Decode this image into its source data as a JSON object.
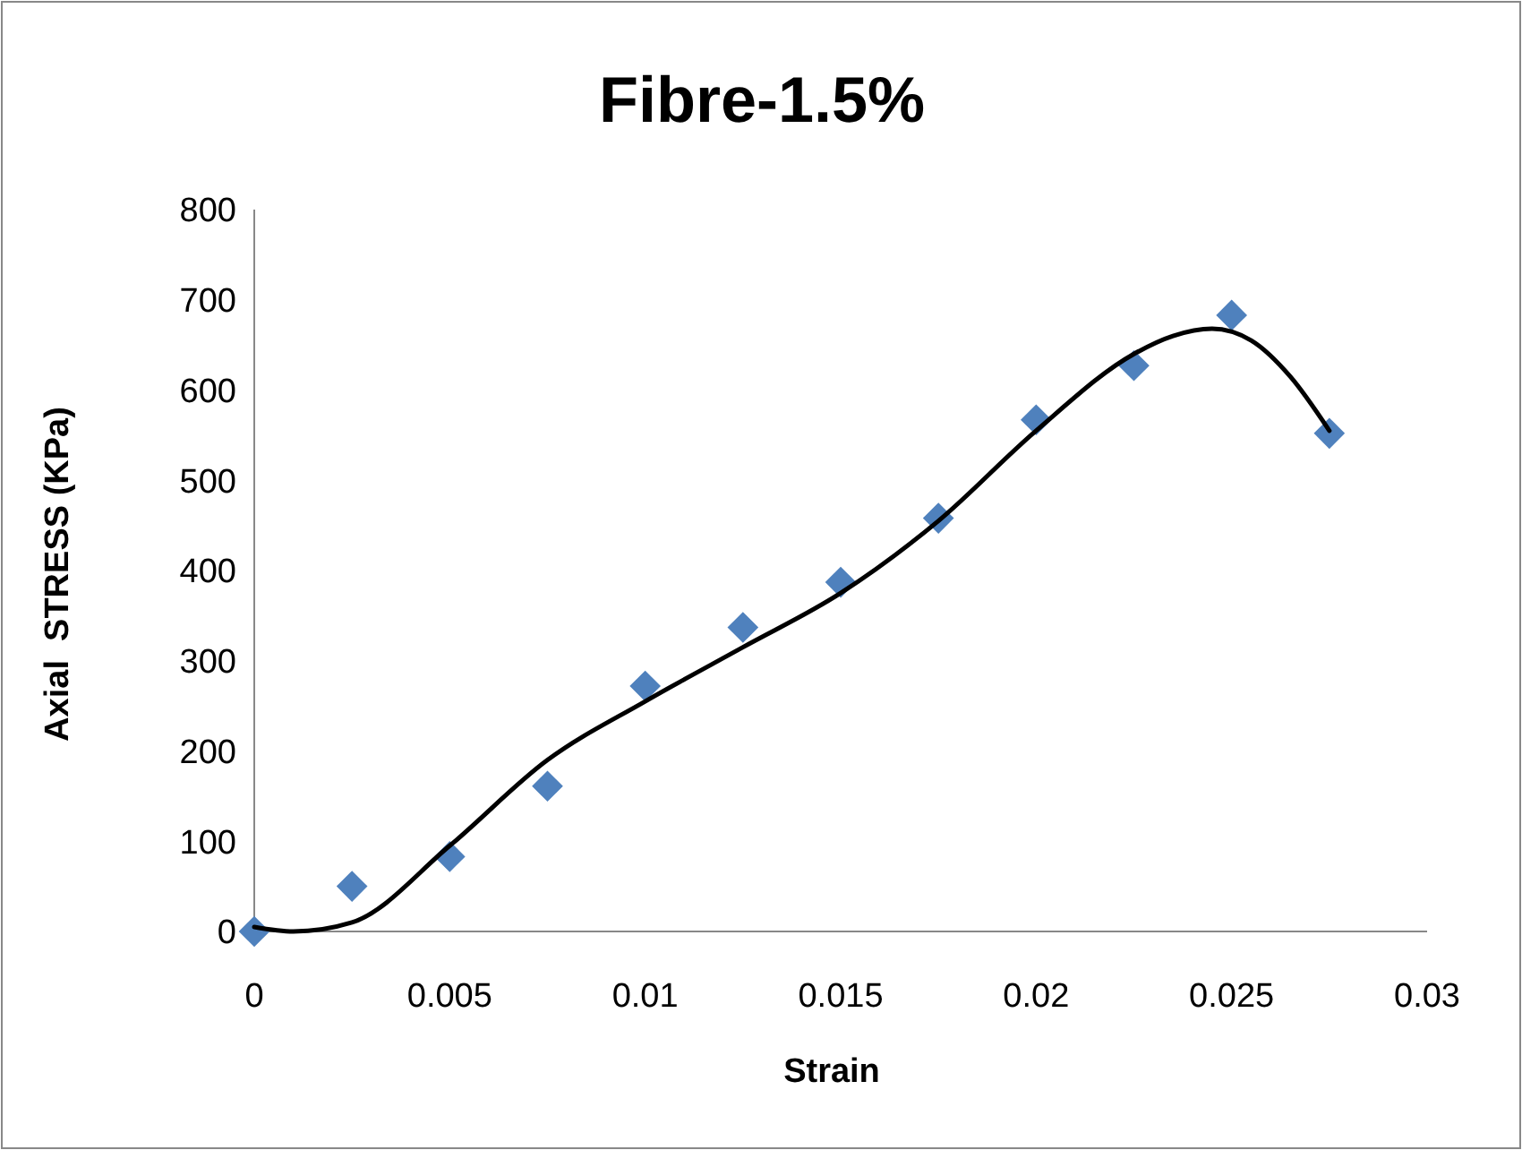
{
  "chart_data": {
    "type": "scatter",
    "title": "Fibre-1.5%",
    "xlabel": "Strain",
    "ylabel": "Axial  STRESS (KPa)",
    "xlim": [
      0,
      0.03
    ],
    "xticks": [
      0,
      0.005,
      0.01,
      0.015,
      0.02,
      0.025,
      0.03
    ],
    "ylim": [
      0,
      800
    ],
    "yticks": [
      0,
      100,
      200,
      300,
      400,
      500,
      600,
      700,
      800
    ],
    "grid": false,
    "series": [
      {
        "marker": "diamond",
        "color": "#4f81bd",
        "x": [
          0,
          0.0025,
          0.005,
          0.0075,
          0.01,
          0.0125,
          0.015,
          0.0175,
          0.02,
          0.0225,
          0.025,
          0.0275
        ],
        "values": [
          0,
          50,
          83,
          161,
          272,
          337,
          387,
          458,
          567,
          627,
          683,
          552
        ]
      },
      {
        "type": "line",
        "marker": "none",
        "line_style": "solid",
        "color": "#000000",
        "x": [
          0,
          0.001,
          0.0025,
          0.005,
          0.0075,
          0.01,
          0.0125,
          0.015,
          0.0175,
          0.02,
          0.0225,
          0.0235,
          0.0245,
          0.0255,
          0.0265,
          0.0275
        ],
        "values": [
          5,
          0,
          10,
          95,
          190,
          255,
          315,
          375,
          455,
          555,
          640,
          660,
          668,
          655,
          615,
          555
        ]
      }
    ]
  }
}
